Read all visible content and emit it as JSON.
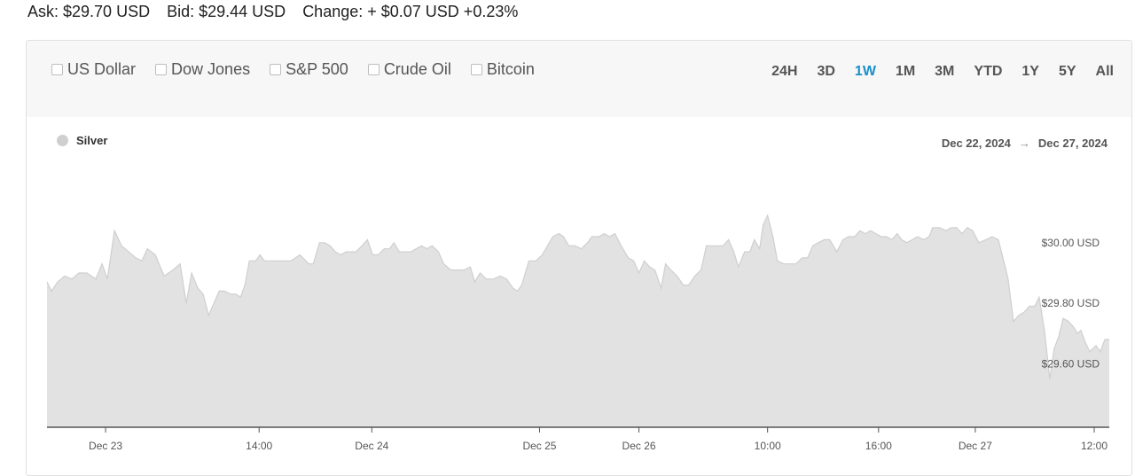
{
  "quote": {
    "ask": "Ask: $29.70 USD",
    "bid": "Bid: $29.44 USD",
    "change": "Change: + $0.07 USD +0.23%"
  },
  "compare": [
    {
      "label": "US Dollar"
    },
    {
      "label": "Dow Jones"
    },
    {
      "label": "S&P 500"
    },
    {
      "label": "Crude Oil"
    },
    {
      "label": "Bitcoin"
    }
  ],
  "ranges": [
    {
      "label": "24H",
      "active": false
    },
    {
      "label": "3D",
      "active": false
    },
    {
      "label": "1W",
      "active": true
    },
    {
      "label": "1M",
      "active": false
    },
    {
      "label": "3M",
      "active": false
    },
    {
      "label": "YTD",
      "active": false
    },
    {
      "label": "1Y",
      "active": false
    },
    {
      "label": "5Y",
      "active": false
    },
    {
      "label": "All",
      "active": false
    }
  ],
  "legend": {
    "label": "Silver"
  },
  "daterange": {
    "from": "Dec 22, 2024",
    "arrow": "→",
    "to": "Dec 27, 2024"
  },
  "colors": {
    "accent": "#1a8fc9",
    "area_fill": "#e2e2e2",
    "area_line": "#cfcfcf",
    "axis": "#555555"
  },
  "chart_data": {
    "type": "area",
    "title": "",
    "xlabel": "",
    "ylabel": "",
    "series": [
      {
        "name": "Silver"
      }
    ],
    "ylim": [
      29.39,
      30.19
    ],
    "xlim": [
      0,
      1197
    ],
    "yticks": [
      {
        "value": 30.0,
        "label": "$30.00 USD"
      },
      {
        "value": 29.8,
        "label": "$29.80 USD"
      },
      {
        "value": 29.6,
        "label": "$29.60 USD"
      }
    ],
    "xticks": [
      {
        "x": 66,
        "label": "Dec 23"
      },
      {
        "x": 239,
        "label": "14:00"
      },
      {
        "x": 366,
        "label": "Dec 24"
      },
      {
        "x": 555,
        "label": "Dec 25"
      },
      {
        "x": 667,
        "label": "Dec 26"
      },
      {
        "x": 812,
        "label": "10:00"
      },
      {
        "x": 937,
        "label": "16:00"
      },
      {
        "x": 1046,
        "label": "Dec 27"
      },
      {
        "x": 1180,
        "label": "12:00"
      }
    ],
    "points": [
      [
        0,
        29.87
      ],
      [
        5,
        29.84
      ],
      [
        12,
        29.87
      ],
      [
        20,
        29.89
      ],
      [
        28,
        29.88
      ],
      [
        36,
        29.9
      ],
      [
        45,
        29.9
      ],
      [
        55,
        29.88
      ],
      [
        62,
        29.93
      ],
      [
        68,
        29.88
      ],
      [
        76,
        30.04
      ],
      [
        84,
        29.99
      ],
      [
        92,
        29.97
      ],
      [
        100,
        29.95
      ],
      [
        107,
        29.94
      ],
      [
        113,
        29.98
      ],
      [
        122,
        29.96
      ],
      [
        132,
        29.89
      ],
      [
        142,
        29.91
      ],
      [
        150,
        29.93
      ],
      [
        157,
        29.8
      ],
      [
        163,
        29.9
      ],
      [
        170,
        29.85
      ],
      [
        176,
        29.83
      ],
      [
        182,
        29.76
      ],
      [
        188,
        29.8
      ],
      [
        194,
        29.84
      ],
      [
        200,
        29.84
      ],
      [
        207,
        29.83
      ],
      [
        213,
        29.83
      ],
      [
        218,
        29.82
      ],
      [
        223,
        29.86
      ],
      [
        228,
        29.94
      ],
      [
        235,
        29.94
      ],
      [
        240,
        29.96
      ],
      [
        245,
        29.94
      ],
      [
        255,
        29.94
      ],
      [
        265,
        29.94
      ],
      [
        275,
        29.94
      ],
      [
        285,
        29.96
      ],
      [
        295,
        29.93
      ],
      [
        300,
        29.93
      ],
      [
        307,
        30.0
      ],
      [
        313,
        30.0
      ],
      [
        319,
        29.99
      ],
      [
        325,
        29.97
      ],
      [
        331,
        29.96
      ],
      [
        337,
        29.97
      ],
      [
        342,
        29.97
      ],
      [
        348,
        29.97
      ],
      [
        355,
        29.99
      ],
      [
        361,
        30.01
      ],
      [
        367,
        29.96
      ],
      [
        373,
        29.96
      ],
      [
        380,
        29.98
      ],
      [
        386,
        29.98
      ],
      [
        391,
        30.0
      ],
      [
        397,
        29.97
      ],
      [
        403,
        29.97
      ],
      [
        410,
        29.97
      ],
      [
        416,
        29.98
      ],
      [
        422,
        29.99
      ],
      [
        428,
        29.98
      ],
      [
        434,
        29.99
      ],
      [
        441,
        29.97
      ],
      [
        447,
        29.93
      ],
      [
        455,
        29.91
      ],
      [
        462,
        29.91
      ],
      [
        470,
        29.91
      ],
      [
        477,
        29.92
      ],
      [
        482,
        29.87
      ],
      [
        488,
        29.9
      ],
      [
        495,
        29.88
      ],
      [
        503,
        29.88
      ],
      [
        511,
        29.89
      ],
      [
        518,
        29.88
      ],
      [
        525,
        29.85
      ],
      [
        530,
        29.84
      ],
      [
        535,
        29.86
      ],
      [
        543,
        29.94
      ],
      [
        551,
        29.94
      ],
      [
        558,
        29.96
      ],
      [
        564,
        29.99
      ],
      [
        570,
        30.02
      ],
      [
        577,
        30.03
      ],
      [
        582,
        30.02
      ],
      [
        588,
        29.99
      ],
      [
        595,
        29.99
      ],
      [
        602,
        29.98
      ],
      [
        609,
        30.0
      ],
      [
        614,
        30.02
      ],
      [
        622,
        30.02
      ],
      [
        628,
        30.03
      ],
      [
        634,
        30.02
      ],
      [
        640,
        30.03
      ],
      [
        647,
        29.99
      ],
      [
        655,
        29.95
      ],
      [
        661,
        29.94
      ],
      [
        667,
        29.9
      ],
      [
        673,
        29.94
      ],
      [
        679,
        29.92
      ],
      [
        685,
        29.91
      ],
      [
        692,
        29.85
      ],
      [
        697,
        29.93
      ],
      [
        703,
        29.91
      ],
      [
        710,
        29.89
      ],
      [
        717,
        29.86
      ],
      [
        723,
        29.86
      ],
      [
        730,
        29.89
      ],
      [
        737,
        29.91
      ],
      [
        743,
        29.99
      ],
      [
        749,
        29.99
      ],
      [
        755,
        29.99
      ],
      [
        762,
        29.99
      ],
      [
        768,
        30.01
      ],
      [
        774,
        29.97
      ],
      [
        779,
        29.92
      ],
      [
        786,
        29.97
      ],
      [
        792,
        29.97
      ],
      [
        797,
        30.01
      ],
      [
        803,
        29.98
      ],
      [
        807,
        30.06
      ],
      [
        812,
        30.09
      ],
      [
        818,
        30.02
      ],
      [
        823,
        29.94
      ],
      [
        830,
        29.93
      ],
      [
        837,
        29.93
      ],
      [
        844,
        29.93
      ],
      [
        851,
        29.95
      ],
      [
        857,
        29.95
      ],
      [
        863,
        29.99
      ],
      [
        869,
        30.0
      ],
      [
        876,
        30.01
      ],
      [
        882,
        30.01
      ],
      [
        890,
        29.97
      ],
      [
        897,
        30.01
      ],
      [
        903,
        30.02
      ],
      [
        910,
        30.02
      ],
      [
        916,
        30.04
      ],
      [
        922,
        30.03
      ],
      [
        928,
        30.04
      ],
      [
        934,
        30.03
      ],
      [
        940,
        30.02
      ],
      [
        946,
        30.02
      ],
      [
        952,
        30.01
      ],
      [
        958,
        30.03
      ],
      [
        963,
        30.01
      ],
      [
        969,
        30.0
      ],
      [
        975,
        30.01
      ],
      [
        981,
        30.02
      ],
      [
        988,
        30.01
      ],
      [
        994,
        30.02
      ],
      [
        998,
        30.05
      ],
      [
        1006,
        30.05
      ],
      [
        1013,
        30.04
      ],
      [
        1019,
        30.05
      ],
      [
        1025,
        30.05
      ],
      [
        1031,
        30.03
      ],
      [
        1037,
        30.05
      ],
      [
        1043,
        30.04
      ],
      [
        1050,
        30.0
      ],
      [
        1058,
        30.01
      ],
      [
        1065,
        30.02
      ],
      [
        1072,
        30.01
      ],
      [
        1078,
        29.94
      ],
      [
        1083,
        29.88
      ],
      [
        1089,
        29.74
      ],
      [
        1095,
        29.76
      ],
      [
        1101,
        29.77
      ],
      [
        1107,
        29.79
      ],
      [
        1113,
        29.79
      ],
      [
        1118,
        29.82
      ],
      [
        1124,
        29.71
      ],
      [
        1130,
        29.55
      ],
      [
        1135,
        29.65
      ],
      [
        1140,
        29.69
      ],
      [
        1145,
        29.75
      ],
      [
        1151,
        29.74
      ],
      [
        1157,
        29.72
      ],
      [
        1161,
        29.7
      ],
      [
        1165,
        29.71
      ],
      [
        1170,
        29.67
      ],
      [
        1175,
        29.64
      ],
      [
        1182,
        29.66
      ],
      [
        1187,
        29.64
      ],
      [
        1192,
        29.68
      ],
      [
        1197,
        29.68
      ]
    ]
  }
}
